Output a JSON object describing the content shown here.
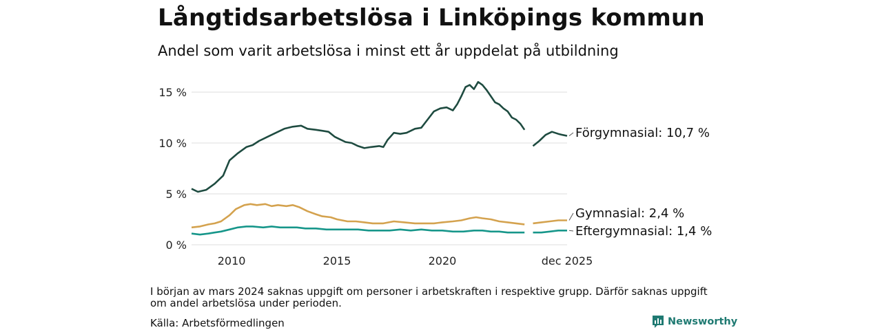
{
  "title": "Långtidsarbetslösa i Linköpings kommun",
  "subtitle": "Andel som varit arbetslösa i minst ett år uppdelat på utbildning",
  "note": "I början av mars 2024 saknas uppgift om personer i arbetskraften i respektive grupp. Därför saknas uppgift om andel arbetslösa under perioden.",
  "source": "Källa: Arbetsförmedlingen",
  "brand": {
    "name": "Newsworthy",
    "icon": "newsworthy-logo-icon"
  },
  "colors": {
    "forgymnasial": "#1e4b40",
    "gymnasial": "#d4a24e",
    "eftergymnasial": "#16968a",
    "grid": "#dddddd"
  },
  "chart_data": {
    "type": "line",
    "title": "Långtidsarbetslösa i Linköpings kommun",
    "xlabel": "",
    "ylabel": "",
    "xlim": [
      2008.1,
      2025.92
    ],
    "ylim": [
      0,
      15
    ],
    "y_ticks": [
      0,
      5,
      10,
      15
    ],
    "y_tick_labels": [
      "0 %",
      "5 %",
      "10 %",
      "15 %"
    ],
    "x_ticks": [
      2010,
      2015,
      2020,
      2025.92
    ],
    "x_tick_labels": [
      "2010",
      "2015",
      "2020",
      "dec 2025"
    ],
    "gap": [
      2023.9,
      2024.3
    ],
    "series": [
      {
        "name": "Förgymnasial",
        "end_label": "Förgymnasial: 10,7 %",
        "color": "#1e4b40",
        "points": [
          [
            2008.1,
            5.5
          ],
          [
            2008.4,
            5.2
          ],
          [
            2008.8,
            5.4
          ],
          [
            2009.2,
            6.0
          ],
          [
            2009.6,
            6.8
          ],
          [
            2009.9,
            8.3
          ],
          [
            2010.3,
            9.0
          ],
          [
            2010.7,
            9.6
          ],
          [
            2011.0,
            9.8
          ],
          [
            2011.3,
            10.2
          ],
          [
            2011.7,
            10.6
          ],
          [
            2012.1,
            11.0
          ],
          [
            2012.5,
            11.4
          ],
          [
            2012.9,
            11.6
          ],
          [
            2013.3,
            11.7
          ],
          [
            2013.6,
            11.4
          ],
          [
            2014.0,
            11.3
          ],
          [
            2014.3,
            11.2
          ],
          [
            2014.6,
            11.1
          ],
          [
            2014.9,
            10.6
          ],
          [
            2015.1,
            10.4
          ],
          [
            2015.4,
            10.1
          ],
          [
            2015.7,
            10.0
          ],
          [
            2016.0,
            9.7
          ],
          [
            2016.3,
            9.5
          ],
          [
            2016.6,
            9.6
          ],
          [
            2017.0,
            9.7
          ],
          [
            2017.2,
            9.6
          ],
          [
            2017.4,
            10.3
          ],
          [
            2017.7,
            11.0
          ],
          [
            2018.0,
            10.9
          ],
          [
            2018.3,
            11.0
          ],
          [
            2018.7,
            11.4
          ],
          [
            2019.0,
            11.5
          ],
          [
            2019.3,
            12.3
          ],
          [
            2019.6,
            13.1
          ],
          [
            2019.9,
            13.4
          ],
          [
            2020.2,
            13.5
          ],
          [
            2020.5,
            13.2
          ],
          [
            2020.7,
            13.8
          ],
          [
            2020.9,
            14.6
          ],
          [
            2021.1,
            15.5
          ],
          [
            2021.3,
            15.7
          ],
          [
            2021.5,
            15.3
          ],
          [
            2021.7,
            16.0
          ],
          [
            2021.9,
            15.7
          ],
          [
            2022.1,
            15.2
          ],
          [
            2022.3,
            14.6
          ],
          [
            2022.5,
            14.0
          ],
          [
            2022.7,
            13.8
          ],
          [
            2022.9,
            13.4
          ],
          [
            2023.1,
            13.1
          ],
          [
            2023.3,
            12.5
          ],
          [
            2023.5,
            12.3
          ],
          [
            2023.7,
            11.9
          ],
          [
            2023.9,
            11.3
          ],
          [
            2024.3,
            9.7
          ],
          [
            2024.6,
            10.2
          ],
          [
            2024.9,
            10.8
          ],
          [
            2025.2,
            11.1
          ],
          [
            2025.5,
            10.9
          ],
          [
            2025.7,
            10.8
          ],
          [
            2025.92,
            10.7
          ]
        ]
      },
      {
        "name": "Gymnasial",
        "end_label": "Gymnasial:  2,4 %",
        "color": "#d4a24e",
        "points": [
          [
            2008.1,
            1.7
          ],
          [
            2008.5,
            1.8
          ],
          [
            2008.9,
            2.0
          ],
          [
            2009.2,
            2.1
          ],
          [
            2009.5,
            2.3
          ],
          [
            2009.9,
            2.9
          ],
          [
            2010.2,
            3.5
          ],
          [
            2010.6,
            3.9
          ],
          [
            2010.9,
            4.0
          ],
          [
            2011.2,
            3.9
          ],
          [
            2011.6,
            4.0
          ],
          [
            2011.9,
            3.8
          ],
          [
            2012.2,
            3.9
          ],
          [
            2012.6,
            3.8
          ],
          [
            2012.9,
            3.9
          ],
          [
            2013.2,
            3.7
          ],
          [
            2013.6,
            3.3
          ],
          [
            2014.0,
            3.0
          ],
          [
            2014.3,
            2.8
          ],
          [
            2014.7,
            2.7
          ],
          [
            2015.0,
            2.5
          ],
          [
            2015.5,
            2.3
          ],
          [
            2015.9,
            2.3
          ],
          [
            2016.3,
            2.2
          ],
          [
            2016.7,
            2.1
          ],
          [
            2017.2,
            2.1
          ],
          [
            2017.7,
            2.3
          ],
          [
            2018.2,
            2.2
          ],
          [
            2018.7,
            2.1
          ],
          [
            2019.2,
            2.1
          ],
          [
            2019.6,
            2.1
          ],
          [
            2020.0,
            2.2
          ],
          [
            2020.5,
            2.3
          ],
          [
            2020.9,
            2.4
          ],
          [
            2021.3,
            2.6
          ],
          [
            2021.6,
            2.7
          ],
          [
            2021.9,
            2.6
          ],
          [
            2022.3,
            2.5
          ],
          [
            2022.7,
            2.3
          ],
          [
            2023.1,
            2.2
          ],
          [
            2023.5,
            2.1
          ],
          [
            2023.9,
            2.0
          ],
          [
            2024.3,
            2.1
          ],
          [
            2024.7,
            2.2
          ],
          [
            2025.1,
            2.3
          ],
          [
            2025.5,
            2.4
          ],
          [
            2025.92,
            2.4
          ]
        ]
      },
      {
        "name": "Eftergymnasial",
        "end_label": "Eftergymnasial:  1,4 %",
        "color": "#16968a",
        "points": [
          [
            2008.1,
            1.1
          ],
          [
            2008.5,
            1.0
          ],
          [
            2008.9,
            1.1
          ],
          [
            2009.2,
            1.2
          ],
          [
            2009.5,
            1.3
          ],
          [
            2009.9,
            1.5
          ],
          [
            2010.3,
            1.7
          ],
          [
            2010.7,
            1.8
          ],
          [
            2011.0,
            1.8
          ],
          [
            2011.5,
            1.7
          ],
          [
            2011.9,
            1.8
          ],
          [
            2012.3,
            1.7
          ],
          [
            2012.7,
            1.7
          ],
          [
            2013.1,
            1.7
          ],
          [
            2013.5,
            1.6
          ],
          [
            2014.0,
            1.6
          ],
          [
            2014.5,
            1.5
          ],
          [
            2015.0,
            1.5
          ],
          [
            2015.5,
            1.5
          ],
          [
            2016.0,
            1.5
          ],
          [
            2016.5,
            1.4
          ],
          [
            2017.0,
            1.4
          ],
          [
            2017.5,
            1.4
          ],
          [
            2018.0,
            1.5
          ],
          [
            2018.5,
            1.4
          ],
          [
            2019.0,
            1.5
          ],
          [
            2019.5,
            1.4
          ],
          [
            2020.0,
            1.4
          ],
          [
            2020.5,
            1.3
          ],
          [
            2021.0,
            1.3
          ],
          [
            2021.5,
            1.4
          ],
          [
            2021.9,
            1.4
          ],
          [
            2022.3,
            1.3
          ],
          [
            2022.7,
            1.3
          ],
          [
            2023.1,
            1.2
          ],
          [
            2023.5,
            1.2
          ],
          [
            2023.9,
            1.2
          ],
          [
            2024.3,
            1.2
          ],
          [
            2024.7,
            1.2
          ],
          [
            2025.1,
            1.3
          ],
          [
            2025.5,
            1.4
          ],
          [
            2025.92,
            1.4
          ]
        ]
      }
    ]
  }
}
